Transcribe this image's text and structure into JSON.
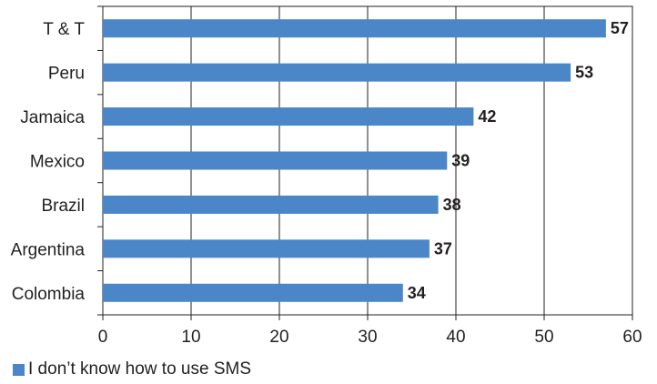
{
  "chart_data": {
    "type": "bar",
    "orientation": "horizontal",
    "categories": [
      "T & T",
      "Peru",
      "Jamaica",
      "Mexico",
      "Brazil",
      "Argentina",
      "Colombia"
    ],
    "series": [
      {
        "name": "I don’t know how to use SMS",
        "values": [
          57,
          53,
          42,
          39,
          38,
          37,
          34
        ]
      }
    ],
    "xlim": [
      0,
      60
    ],
    "xticks": [
      0,
      10,
      20,
      30,
      40,
      50,
      60
    ],
    "grid": "vertical",
    "legend": "bottom-left",
    "data_labels": true,
    "colors": {
      "bar": "#4a86c8",
      "grid": "#231f20",
      "text": "#231f20"
    }
  },
  "legend": {
    "label": "I don’t know how to use SMS"
  }
}
